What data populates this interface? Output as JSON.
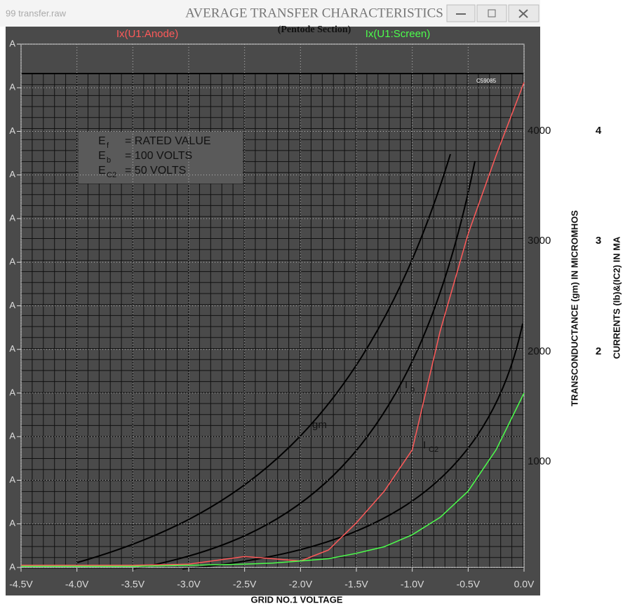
{
  "window": {
    "title": "99 transfer.raw"
  },
  "scan": {
    "title": "AVERAGE TRANSFER CHARACTERISTICS",
    "subtitle": "(Pentode Section)",
    "code": "C59085",
    "conditions": [
      {
        "symbol": "E",
        "sub": "f",
        "text": "= RATED VALUE"
      },
      {
        "symbol": "E",
        "sub": "b",
        "text": "= 100 VOLTS"
      },
      {
        "symbol": "E",
        "sub": "C2",
        "text": "= 50 VOLTS"
      }
    ],
    "curve_labels": [
      {
        "symbol": "gm",
        "sub": ""
      },
      {
        "symbol": "I",
        "sub": "b"
      },
      {
        "symbol": "I",
        "sub": "C2"
      }
    ],
    "gm_ticks": [
      "4000",
      "3000",
      "2000",
      "1000"
    ],
    "current_ticks": [
      "4",
      "3",
      "2"
    ],
    "gm_axis_label": "TRANSCONDUCTANCE (gm) IN MICROMHOS",
    "current_axis_label": "CURRENTS (Ib)&(IC2) IN MA",
    "x_axis_label": "GRID NO.1 VOLTAGE"
  },
  "chart_data": {
    "type": "line",
    "x": [
      -4.5,
      -4.0,
      -3.5,
      -3.0,
      -2.5,
      -2.25,
      -2.0,
      -1.75,
      -1.5,
      -1.25,
      -1.0,
      -0.75,
      -0.5,
      -0.25,
      0.0
    ],
    "series": [
      {
        "name": "Ix(U1:Anode)",
        "color": "#ff5a5a",
        "values": [
          0.02,
          0.02,
          0.02,
          0.03,
          0.1,
          0.08,
          0.06,
          0.16,
          0.41,
          0.7,
          1.08,
          2.17,
          3.06,
          3.78,
          4.45
        ]
      },
      {
        "name": "Ix(U1:Screen)",
        "color": "#4cff4c",
        "values": [
          0.01,
          0.01,
          0.01,
          0.02,
          0.03,
          0.04,
          0.06,
          0.08,
          0.13,
          0.19,
          0.3,
          0.46,
          0.7,
          1.08,
          1.6
        ]
      }
    ],
    "xlim": [
      -4.5,
      0.0
    ],
    "xticks": [
      {
        "value": -4.5,
        "label": "-4.5V"
      },
      {
        "value": -4.0,
        "label": "-4.0V"
      },
      {
        "value": -3.5,
        "label": "-3.5V"
      },
      {
        "value": -3.0,
        "label": "-3.0V"
      },
      {
        "value": -2.5,
        "label": "-2.5V"
      },
      {
        "value": -2.0,
        "label": "-2.0V"
      },
      {
        "value": -1.5,
        "label": "-1.5V"
      },
      {
        "value": -1.0,
        "label": "-1.0V"
      },
      {
        "value": -0.5,
        "label": "-0.5V"
      },
      {
        "value": 0.0,
        "label": "0.0V"
      }
    ],
    "ylim": [
      0,
      4.8
    ],
    "yticks": [
      {
        "value": 0,
        "label": "A"
      },
      {
        "value": 0.4,
        "label": "A"
      },
      {
        "value": 0.8,
        "label": "A"
      },
      {
        "value": 1.2,
        "label": "A"
      },
      {
        "value": 1.6,
        "label": "A"
      },
      {
        "value": 2.0,
        "label": "A"
      },
      {
        "value": 2.4,
        "label": "A"
      },
      {
        "value": 2.8,
        "label": "A"
      },
      {
        "value": 3.2,
        "label": "A"
      },
      {
        "value": 3.6,
        "label": "A"
      },
      {
        "value": 4.0,
        "label": "A"
      },
      {
        "value": 4.4,
        "label": "A"
      },
      {
        "value": 4.8,
        "label": "A"
      }
    ],
    "grid": true
  }
}
